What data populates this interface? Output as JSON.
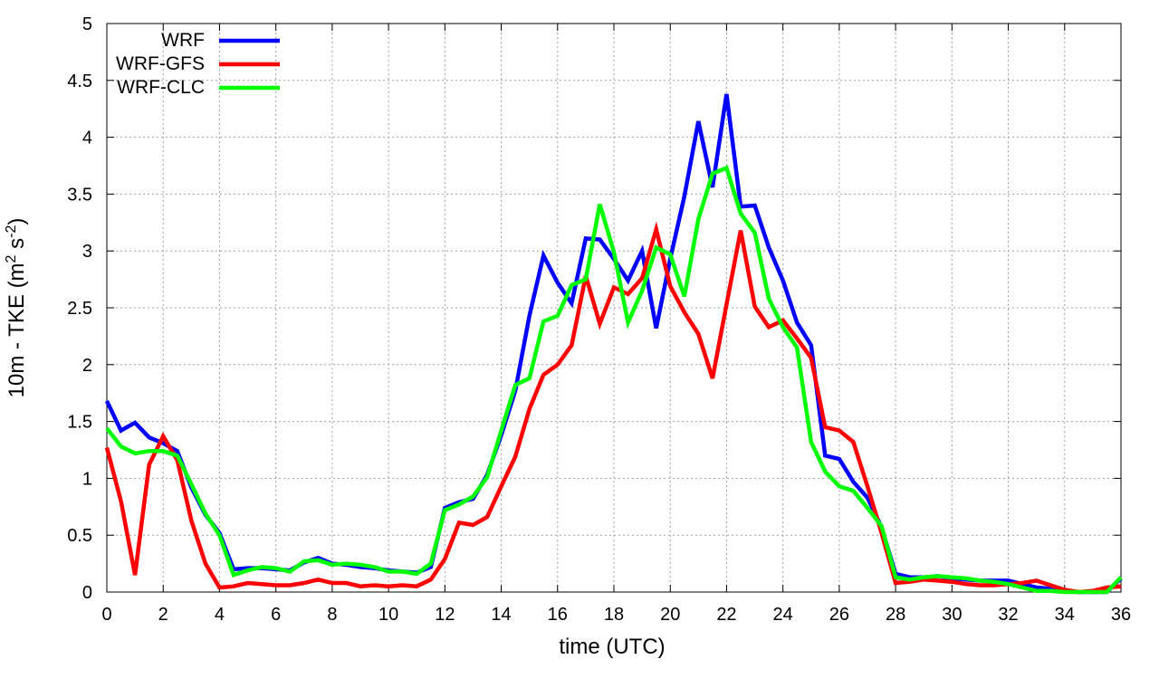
{
  "chart_data": {
    "type": "line",
    "xlabel": "time (UTC)",
    "ylabel": "10m - TKE (m² s⁻²)",
    "ylabel_parts": [
      "10m - TKE (m",
      "2",
      " s",
      "-2",
      ")"
    ],
    "xlim": [
      0,
      36
    ],
    "ylim": [
      0,
      5
    ],
    "xticks": [
      0,
      2,
      4,
      6,
      8,
      10,
      12,
      14,
      16,
      18,
      20,
      22,
      24,
      26,
      28,
      30,
      32,
      34,
      36
    ],
    "yticks": [
      0,
      0.5,
      1,
      1.5,
      2,
      2.5,
      3,
      3.5,
      4,
      4.5,
      5
    ],
    "ytick_labels": [
      "0",
      "0.5",
      "1",
      "1.5",
      "2",
      "2.5",
      "3",
      "3.5",
      "4",
      "4.5",
      "5"
    ],
    "grid": true,
    "legend_position": "top-left",
    "x": [
      0,
      0.5,
      1,
      1.5,
      2,
      2.5,
      3,
      3.5,
      4,
      4.5,
      5,
      5.5,
      6,
      6.5,
      7,
      7.5,
      8,
      8.5,
      9,
      9.5,
      10,
      10.5,
      11,
      11.5,
      12,
      12.5,
      13,
      13.5,
      14,
      14.5,
      15,
      15.5,
      16,
      16.5,
      17,
      17.5,
      18,
      18.5,
      19,
      19.5,
      20,
      20.5,
      21,
      21.5,
      22,
      22.5,
      23,
      23.5,
      24,
      24.5,
      25,
      25.5,
      26,
      26.5,
      27,
      27.5,
      28,
      28.5,
      29,
      29.5,
      30,
      30.5,
      31,
      31.5,
      32,
      32.5,
      33,
      33.5,
      34,
      34.5,
      35,
      35.5,
      36
    ],
    "series": [
      {
        "name": "WRF",
        "color": "#0000ff",
        "values": [
          1.68,
          1.42,
          1.49,
          1.36,
          1.31,
          1.24,
          0.92,
          0.68,
          0.52,
          0.2,
          0.21,
          0.21,
          0.2,
          0.19,
          0.26,
          0.3,
          0.25,
          0.24,
          0.22,
          0.21,
          0.19,
          0.18,
          0.17,
          0.22,
          0.74,
          0.79,
          0.82,
          1.03,
          1.38,
          1.77,
          2.43,
          2.96,
          2.72,
          2.54,
          3.11,
          3.1,
          2.93,
          2.74,
          3.0,
          2.32,
          2.93,
          3.48,
          4.14,
          3.56,
          4.38,
          3.39,
          3.4,
          3.03,
          2.74,
          2.37,
          2.17,
          1.2,
          1.17,
          0.97,
          0.83,
          0.57,
          0.16,
          0.13,
          0.13,
          0.14,
          0.12,
          0.11,
          0.1,
          0.1,
          0.1,
          0.07,
          0.04,
          0.03,
          0.01,
          0.0,
          0.0,
          0.0,
          0.12
        ]
      },
      {
        "name": "WRF-GFS",
        "color": "#ff0000",
        "values": [
          1.27,
          0.8,
          0.15,
          1.12,
          1.37,
          1.16,
          0.63,
          0.25,
          0.04,
          0.05,
          0.08,
          0.07,
          0.06,
          0.06,
          0.08,
          0.11,
          0.08,
          0.08,
          0.05,
          0.06,
          0.05,
          0.06,
          0.05,
          0.11,
          0.29,
          0.61,
          0.59,
          0.66,
          0.93,
          1.19,
          1.61,
          1.91,
          2.0,
          2.17,
          2.78,
          2.36,
          2.68,
          2.62,
          2.76,
          3.19,
          2.69,
          2.46,
          2.27,
          1.88,
          2.53,
          3.18,
          2.51,
          2.33,
          2.39,
          2.23,
          2.06,
          1.45,
          1.42,
          1.32,
          0.93,
          0.52,
          0.08,
          0.09,
          0.11,
          0.1,
          0.09,
          0.07,
          0.06,
          0.06,
          0.07,
          0.08,
          0.1,
          0.06,
          0.02,
          0.0,
          0.01,
          0.04,
          0.05
        ]
      },
      {
        "name": "WRF-CLC",
        "color": "#00ff00",
        "values": [
          1.44,
          1.28,
          1.22,
          1.24,
          1.24,
          1.2,
          0.95,
          0.69,
          0.5,
          0.15,
          0.19,
          0.22,
          0.21,
          0.18,
          0.27,
          0.28,
          0.24,
          0.25,
          0.24,
          0.22,
          0.18,
          0.18,
          0.16,
          0.25,
          0.72,
          0.77,
          0.84,
          1.01,
          1.42,
          1.82,
          1.88,
          2.38,
          2.43,
          2.7,
          2.75,
          3.41,
          2.99,
          2.37,
          2.65,
          3.03,
          2.97,
          2.6,
          3.28,
          3.68,
          3.73,
          3.33,
          3.16,
          2.58,
          2.33,
          2.15,
          1.32,
          1.06,
          0.93,
          0.89,
          0.74,
          0.58,
          0.13,
          0.11,
          0.13,
          0.14,
          0.13,
          0.12,
          0.1,
          0.09,
          0.07,
          0.04,
          0.01,
          0.01,
          0.0,
          0.0,
          0.0,
          0.0,
          0.13
        ]
      }
    ]
  }
}
